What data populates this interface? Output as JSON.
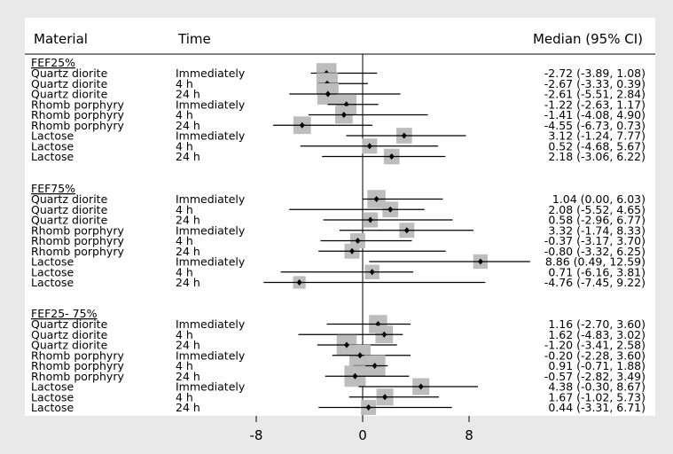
{
  "chart_data": {
    "type": "forest",
    "header": {
      "col1": "Material",
      "col2": "Time",
      "col3": "Median (95% CI)"
    },
    "axis": {
      "ticks": [
        -8,
        0,
        8
      ],
      "tick_labels": [
        "-8",
        "0",
        "8"
      ],
      "xlim": [
        -27.2,
        21.3
      ],
      "reference_line": 0
    },
    "groups": [
      {
        "title": "FEF25%",
        "rows": [
          {
            "material": "Quartz diorite",
            "time": "Immediately",
            "median": -2.72,
            "lo": -3.89,
            "hi": 1.08,
            "label": "-2.72 (-3.89, 1.08)",
            "weight": 0.9
          },
          {
            "material": "Quartz diorite",
            "time": "4 h",
            "median": -2.67,
            "lo": -3.33,
            "hi": 0.39,
            "label": "-2.67 (-3.33, 0.39)",
            "weight": 1.0
          },
          {
            "material": "Quartz diorite",
            "time": "24 h",
            "median": -2.61,
            "lo": -5.51,
            "hi": 2.84,
            "label": "-2.61 (-5.51, 2.84)",
            "weight": 1.0
          },
          {
            "material": "Rhomb porphyry",
            "time": "Immediately",
            "median": -1.22,
            "lo": -2.63,
            "hi": 1.17,
            "label": "-1.22 (-2.63, 1.17)",
            "weight": 0.9
          },
          {
            "material": "Rhomb porphyry",
            "time": "4 h",
            "median": -1.41,
            "lo": -4.08,
            "hi": 4.9,
            "label": "-1.41 (-4.08, 4.90)",
            "weight": 0.7
          },
          {
            "material": "Rhomb porphyry",
            "time": "24 h",
            "median": -4.55,
            "lo": -6.73,
            "hi": 0.73,
            "label": "-4.55 (-6.73, 0.73)",
            "weight": 0.7
          },
          {
            "material": "Lactose",
            "time": "Immediately",
            "median": 3.12,
            "lo": -1.24,
            "hi": 7.77,
            "label": "3.12 (-1.24, 7.77)",
            "weight": 0.55
          },
          {
            "material": "Lactose",
            "time": "4 h",
            "median": 0.52,
            "lo": -4.68,
            "hi": 5.67,
            "label": "0.52 (-4.68, 5.67)",
            "weight": 0.5
          },
          {
            "material": "Lactose",
            "time": "24 h",
            "median": 2.18,
            "lo": -3.06,
            "hi": 6.22,
            "label": "2.18 (-3.06, 6.22)",
            "weight": 0.55
          }
        ]
      },
      {
        "title": "FEF75%",
        "rows": [
          {
            "material": "Quartz diorite",
            "time": "Immediately",
            "median": 1.04,
            "lo": 0.0,
            "hi": 6.03,
            "label": "1.04 (0.00, 6.03)",
            "weight": 0.75
          },
          {
            "material": "Quartz diorite",
            "time": "4 h",
            "median": 2.08,
            "lo": -5.52,
            "hi": 4.65,
            "label": "2.08 (-5.52, 4.65)",
            "weight": 0.55
          },
          {
            "material": "Quartz diorite",
            "time": "24 h",
            "median": 0.58,
            "lo": -2.96,
            "hi": 6.77,
            "label": "0.58 (-2.96, 6.77)",
            "weight": 0.5
          },
          {
            "material": "Rhomb porphyry",
            "time": "Immediately",
            "median": 3.32,
            "lo": -1.74,
            "hi": 8.33,
            "label": "3.32 (-1.74, 8.33)",
            "weight": 0.5
          },
          {
            "material": "Rhomb porphyry",
            "time": "4 h",
            "median": -0.37,
            "lo": -3.17,
            "hi": 3.7,
            "label": "-0.37 (-3.17, 3.70)",
            "weight": 0.5
          },
          {
            "material": "Rhomb porphyry",
            "time": "24 h",
            "median": -0.8,
            "lo": -3.32,
            "hi": 6.25,
            "label": "-0.80 (-3.32, 6.25)",
            "weight": 0.5
          },
          {
            "material": "Lactose",
            "time": "Immediately",
            "median": 8.86,
            "lo": 0.49,
            "hi": 12.59,
            "label": "8.86 (0.49, 12.59)",
            "weight": 0.45
          },
          {
            "material": "Lactose",
            "time": "4 h",
            "median": 0.71,
            "lo": -6.16,
            "hi": 3.81,
            "label": "0.71 (-6.16, 3.81)",
            "weight": 0.45
          },
          {
            "material": "Lactose",
            "time": "24 h",
            "median": -4.76,
            "lo": -7.45,
            "hi": 9.22,
            "label": "-4.76 (-7.45, 9.22)",
            "weight": 0.3
          }
        ]
      },
      {
        "title": "FEF25- 75%",
        "rows": [
          {
            "material": "Quartz diorite",
            "time": "Immediately",
            "median": 1.16,
            "lo": -2.7,
            "hi": 3.6,
            "label": "1.16 (-2.70, 3.60)",
            "weight": 0.75
          },
          {
            "material": "Quartz diorite",
            "time": "4 h",
            "median": 1.62,
            "lo": -4.83,
            "hi": 3.02,
            "label": "1.62 (-4.83, 3.02)",
            "weight": 0.7
          },
          {
            "material": "Quartz diorite",
            "time": "24 h",
            "median": -1.2,
            "lo": -3.41,
            "hi": 2.58,
            "label": "-1.20 (-3.41, 2.58)",
            "weight": 0.9
          },
          {
            "material": "Rhomb porphyry",
            "time": "Immediately",
            "median": -0.2,
            "lo": -2.28,
            "hi": 3.6,
            "label": "-0.20 (-2.28, 3.60)",
            "weight": 1.0
          },
          {
            "material": "Rhomb porphyry",
            "time": "4 h",
            "median": 0.91,
            "lo": -0.71,
            "hi": 1.88,
            "label": "0.91 (-0.71, 1.88)",
            "weight": 1.0
          },
          {
            "material": "Rhomb porphyry",
            "time": "24 h",
            "median": -0.57,
            "lo": -2.82,
            "hi": 3.49,
            "label": "-0.57 (-2.82, 3.49)",
            "weight": 1.0
          },
          {
            "material": "Lactose",
            "time": "Immediately",
            "median": 4.38,
            "lo": -0.3,
            "hi": 8.67,
            "label": "4.38 (-0.30, 8.67)",
            "weight": 0.65
          },
          {
            "material": "Lactose",
            "time": "4 h",
            "median": 1.67,
            "lo": -1.02,
            "hi": 5.73,
            "label": "1.67 (-1.02, 5.73)",
            "weight": 0.65
          },
          {
            "material": "Lactose",
            "time": "24 h",
            "median": 0.44,
            "lo": -3.31,
            "hi": 6.71,
            "label": "0.44 (-3.31, 6.71)",
            "weight": 0.5
          }
        ]
      }
    ]
  }
}
